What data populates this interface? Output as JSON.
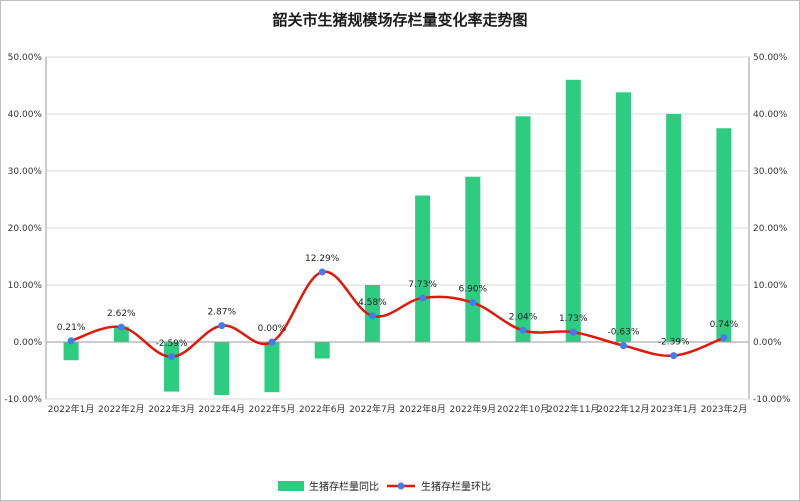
{
  "chart_data": {
    "type": "bar",
    "title": "韶关市生猪规模场存栏量变化率走势图",
    "categories": [
      "2022年1月",
      "2022年2月",
      "2022年3月",
      "2022年4月",
      "2022年5月",
      "2022年6月",
      "2022年7月",
      "2022年8月",
      "2022年9月",
      "2022年10月",
      "2022年11月",
      "2022年12月",
      "2023年1月",
      "2023年2月"
    ],
    "ylim": [
      -10,
      50
    ],
    "yticks": [
      "-10.00%",
      "0.00%",
      "10.00%",
      "20.00%",
      "30.00%",
      "40.00%",
      "50.00%"
    ],
    "grid": true,
    "legend_position": "bottom",
    "series": [
      {
        "name": "生猪存栏量同比",
        "kind": "bar",
        "color": "#2ecc80",
        "values": [
          -3.2,
          2.7,
          -8.7,
          -9.3,
          -8.8,
          -2.9,
          10.0,
          25.7,
          29.0,
          39.6,
          46.0,
          43.8,
          40.0,
          37.5
        ]
      },
      {
        "name": "生猪存栏量环比",
        "kind": "line",
        "color": "#e3170a",
        "marker_color": "#3d7ff0",
        "values": [
          0.21,
          2.62,
          -2.59,
          2.87,
          0.0,
          12.29,
          4.58,
          7.73,
          6.9,
          2.04,
          1.73,
          -0.63,
          -2.39,
          0.74
        ],
        "labels": [
          "0.21%",
          "2.62%",
          "-2.59%",
          "2.87%",
          "0.00%",
          "12.29%",
          "4.58%",
          "7.73%",
          "6.90%",
          "2.04%",
          "1.73%",
          "-0.63%",
          "-2.39%",
          "0.74%"
        ]
      }
    ]
  }
}
